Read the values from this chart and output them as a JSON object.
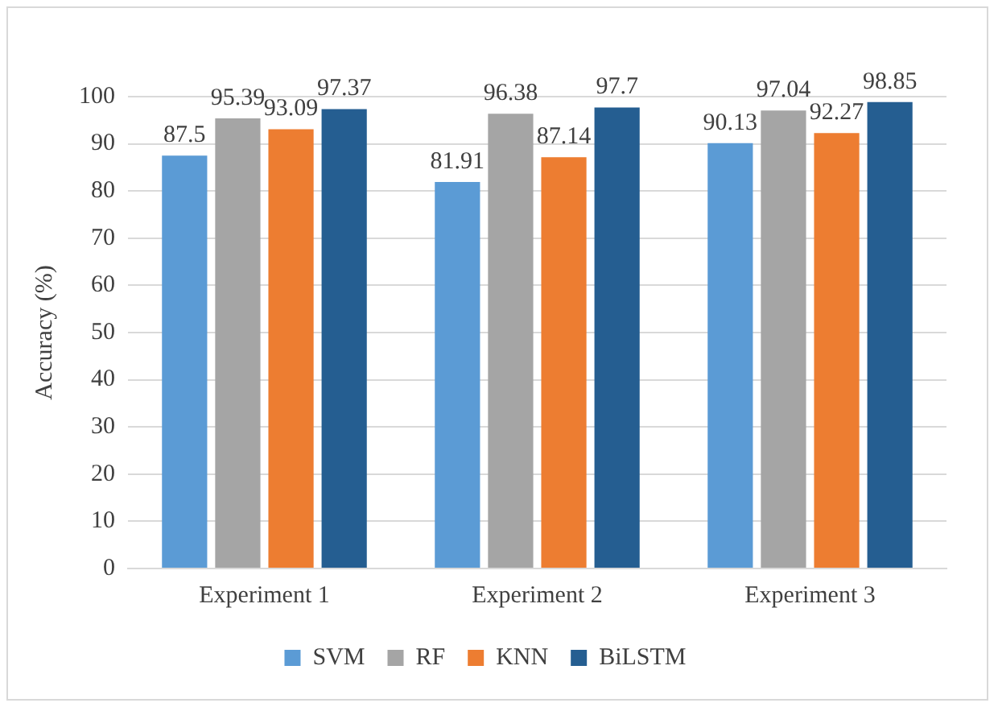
{
  "chart_data": {
    "type": "bar",
    "ylabel": "Accuracy (%)",
    "categories": [
      "Experiment 1",
      "Experiment 2",
      "Experiment 3"
    ],
    "series": [
      {
        "name": "SVM",
        "color": "#5b9bd5",
        "values": [
          87.5,
          81.91,
          90.13
        ]
      },
      {
        "name": "RF",
        "color": "#a5a5a5",
        "values": [
          95.39,
          96.38,
          97.04
        ]
      },
      {
        "name": "KNN",
        "color": "#ed7d31",
        "values": [
          93.09,
          87.14,
          92.27
        ]
      },
      {
        "name": "BiLSTM",
        "color": "#255e91",
        "values": [
          97.37,
          97.7,
          98.85
        ]
      }
    ],
    "ylim": [
      0,
      100
    ],
    "yticks": [
      0,
      10,
      20,
      30,
      40,
      50,
      60,
      70,
      80,
      90,
      100
    ],
    "grid": "y",
    "legend": "bottom",
    "data_labels": true
  }
}
